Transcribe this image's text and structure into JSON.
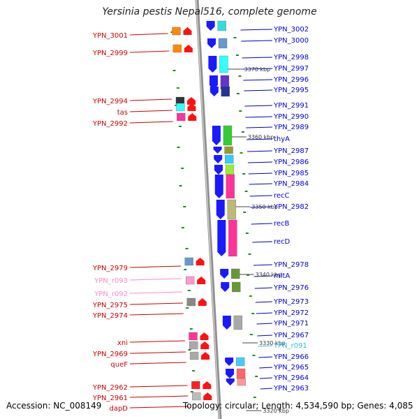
{
  "title": "Yersinia pestis Nepal516, complete genome",
  "footer": {
    "accession": "Accession: NC_008149",
    "topology": "Topology: circular; Length: 4,534,590 bp; Genes: 4,085"
  },
  "colors": {
    "left_label": "#cc0000",
    "left_label_rna": "#ff88cc",
    "right_label": "#0000cc",
    "right_label_rna": "#33bbee",
    "backbone": "#999999",
    "tick_mark": "#228822"
  },
  "scale_labels": [
    "3370 kbp",
    "3360 kbp",
    "3350 kbp",
    "3340 kbp",
    "3330 kbp",
    "3320 kbp"
  ],
  "left_genes": [
    {
      "label": "YPN_3001"
    },
    {
      "label": "YPN_2999"
    },
    {
      "label": "YPN_2994"
    },
    {
      "label": "tas"
    },
    {
      "label": "YPN_2992"
    },
    {
      "label": "YPN_2979"
    },
    {
      "label": "YPN_r093"
    },
    {
      "label": "YPN_r092"
    },
    {
      "label": "YPN_2975"
    },
    {
      "label": "YPN_2974"
    },
    {
      "label": "xni"
    },
    {
      "label": "YPN_2969"
    },
    {
      "label": "queF"
    },
    {
      "label": "YPN_2962"
    },
    {
      "label": "YPN_2961"
    },
    {
      "label": "dapD"
    }
  ],
  "right_genes": [
    {
      "label": "YPN_3002"
    },
    {
      "label": "YPN_3000"
    },
    {
      "label": "YPN_2998"
    },
    {
      "label": "YPN_2997"
    },
    {
      "label": "YPN_2996"
    },
    {
      "label": "YPN_2995"
    },
    {
      "label": "YPN_2991"
    },
    {
      "label": "YPN_2990"
    },
    {
      "label": "YPN_2989"
    },
    {
      "label": "thyA"
    },
    {
      "label": "YPN_2987"
    },
    {
      "label": "YPN_2986"
    },
    {
      "label": "YPN_2985"
    },
    {
      "label": "YPN_2984"
    },
    {
      "label": "recC"
    },
    {
      "label": "YPN_2982"
    },
    {
      "label": "recB"
    },
    {
      "label": "recD"
    },
    {
      "label": "YPN_2978"
    },
    {
      "label": "mltA"
    },
    {
      "label": "YPN_2976"
    },
    {
      "label": "YPN_2973"
    },
    {
      "label": "YPN_2972"
    },
    {
      "label": "YPN_2971"
    },
    {
      "label": "YPN_2967"
    },
    {
      "label": "YPN_r091"
    },
    {
      "label": "YPN_2966"
    },
    {
      "label": "YPN_2965"
    },
    {
      "label": "YPN_2964"
    },
    {
      "label": "YPN_2963"
    }
  ]
}
